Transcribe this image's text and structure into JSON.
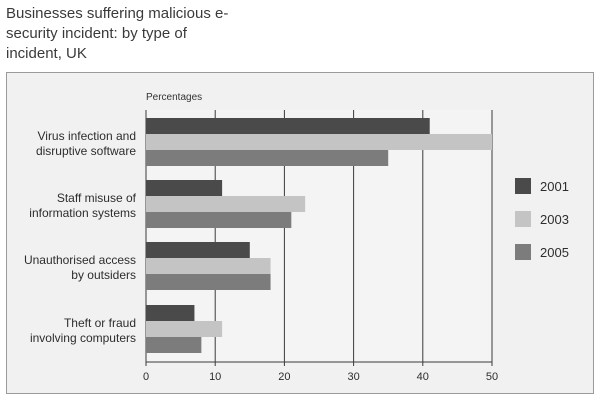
{
  "chart_data": {
    "type": "bar",
    "orientation": "horizontal",
    "title": "Businesses suffering malicious e-security incident: by type of incident, UK",
    "units_label": "Percentages",
    "categories": [
      "Virus infection and disruptive software",
      "Staff misuse of information systems",
      "Unauthorised access by outsiders",
      "Theft or fraud involving computers"
    ],
    "category_lines": [
      [
        "Virus infection and",
        "disruptive software"
      ],
      [
        "Staff misuse of",
        "information systems"
      ],
      [
        "Unauthorised access",
        "by outsiders"
      ],
      [
        "Theft or fraud",
        "involving computers"
      ]
    ],
    "series": [
      {
        "name": "2001",
        "color": "#4a4a4a",
        "values": [
          41,
          11,
          15,
          7
        ]
      },
      {
        "name": "2003",
        "color": "#c4c4c4",
        "values": [
          50,
          23,
          18,
          11
        ]
      },
      {
        "name": "2005",
        "color": "#7c7c7c",
        "values": [
          35,
          21,
          18,
          8
        ]
      }
    ],
    "xlim": [
      0,
      50
    ],
    "xticks": [
      0,
      10,
      20,
      30,
      40,
      50
    ],
    "grid": true,
    "legend_position": "right"
  }
}
